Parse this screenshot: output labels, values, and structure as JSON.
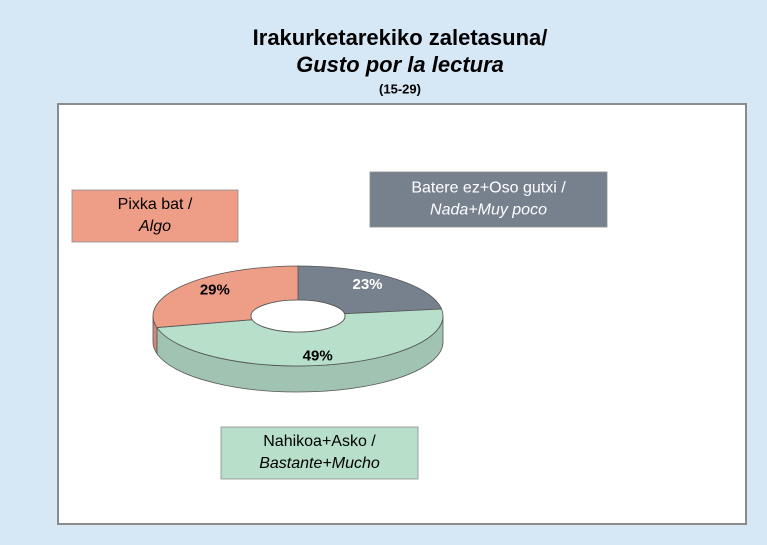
{
  "chart_data": {
    "type": "pie",
    "donut": true,
    "three_d": true,
    "title": "Irakurketarekiko zaletasuna/",
    "subtitle": "Gusto por la lectura",
    "annotation": "(15-29)",
    "categories": [
      "Batere ez+Oso gutxi /",
      "Nahikoa+Asko /",
      "Pixka bat /"
    ],
    "categories_es": [
      "Nada+Muy poco",
      "Bastante+Mucho",
      "Algo"
    ],
    "values": [
      23,
      49,
      29
    ],
    "value_labels": [
      "23%",
      "49%",
      "29%"
    ],
    "colors": [
      "#77818e",
      "#b7dfca",
      "#ee9e87"
    ]
  }
}
